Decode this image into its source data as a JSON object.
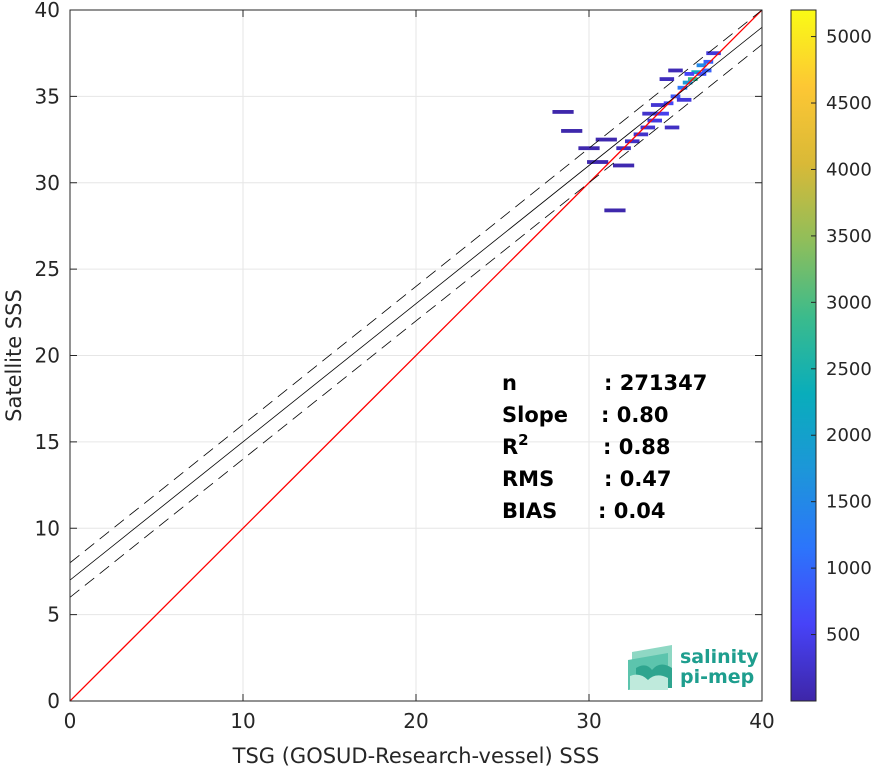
{
  "chart_data": {
    "type": "heatmap",
    "xlabel": "TSG (GOSUD-Research-vessel) SSS",
    "ylabel": "Satellite SSS",
    "xlim": [
      0,
      40
    ],
    "ylim": [
      0,
      40
    ],
    "xticks": [
      "0",
      "10",
      "20",
      "30",
      "40"
    ],
    "yticks": [
      "0",
      "5",
      "10",
      "15",
      "20",
      "25",
      "30",
      "35",
      "40"
    ],
    "grid": true,
    "reference_line": {
      "type": "1:1",
      "color": "#ff0000"
    },
    "fit_line": {
      "slope": 0.8,
      "intercept": 7.0,
      "color": "#000000"
    },
    "fit_bounds": {
      "offsets": [
        1.0,
        -1.0
      ],
      "style": "dashed",
      "color": "#000000"
    },
    "colorbar": {
      "range": [
        0,
        5200
      ],
      "ticks": [
        "500",
        "1000",
        "1500",
        "2000",
        "2500",
        "3000",
        "3500",
        "4000",
        "4500",
        "5000"
      ],
      "colormap": [
        "#3e26a8",
        "#4743f8",
        "#2c75fb",
        "#1d96d9",
        "#09adbb",
        "#3bbb8c",
        "#90be5a",
        "#d9b937",
        "#fdc734",
        "#f9fb15"
      ]
    },
    "density": [
      {
        "x": 37.2,
        "y": 37.5,
        "count": 350
      },
      {
        "x": 36.9,
        "y": 37.0,
        "count": 900
      },
      {
        "x": 36.5,
        "y": 36.8,
        "count": 1500
      },
      {
        "x": 36.2,
        "y": 36.4,
        "count": 2200
      },
      {
        "x": 36.0,
        "y": 36.0,
        "count": 2800
      },
      {
        "x": 35.7,
        "y": 35.8,
        "count": 1800
      },
      {
        "x": 35.4,
        "y": 35.5,
        "count": 1200
      },
      {
        "x": 35.0,
        "y": 35.0,
        "count": 800
      },
      {
        "x": 34.6,
        "y": 34.6,
        "count": 600
      },
      {
        "x": 34.2,
        "y": 34.0,
        "count": 500
      },
      {
        "x": 33.8,
        "y": 33.6,
        "count": 400
      },
      {
        "x": 33.4,
        "y": 33.2,
        "count": 300
      },
      {
        "x": 33.0,
        "y": 32.8,
        "count": 250
      },
      {
        "x": 32.5,
        "y": 32.4,
        "count": 200
      },
      {
        "x": 32.0,
        "y": 32.0,
        "count": 150
      },
      {
        "x": 36.5,
        "y": 36.3,
        "count": 700
      },
      {
        "x": 36.8,
        "y": 36.5,
        "count": 900
      },
      {
        "x": 35.8,
        "y": 36.3,
        "count": 600
      },
      {
        "x": 34.0,
        "y": 34.5,
        "count": 300
      },
      {
        "x": 33.5,
        "y": 34.0,
        "count": 250
      },
      {
        "x": 35.5,
        "y": 34.8,
        "count": 350
      },
      {
        "x": 31.0,
        "y": 32.5,
        "count": 50
      },
      {
        "x": 30.0,
        "y": 32.0,
        "count": 40
      },
      {
        "x": 29.0,
        "y": 33.0,
        "count": 30
      },
      {
        "x": 28.5,
        "y": 34.1,
        "count": 20
      },
      {
        "x": 30.5,
        "y": 31.2,
        "count": 40
      },
      {
        "x": 32.0,
        "y": 31.0,
        "count": 60
      },
      {
        "x": 31.5,
        "y": 28.4,
        "count": 30
      },
      {
        "x": 34.5,
        "y": 36.0,
        "count": 150
      },
      {
        "x": 35.0,
        "y": 36.5,
        "count": 100
      },
      {
        "x": 34.8,
        "y": 33.2,
        "count": 200
      }
    ]
  },
  "stats": [
    {
      "label": "n",
      "value": ": 271347"
    },
    {
      "label": "Slope",
      "value": ": 0.80"
    },
    {
      "label": "R",
      "value": ": 0.88",
      "sup": "2"
    },
    {
      "label": "RMS",
      "value": ": 0.47"
    },
    {
      "label": "BIAS",
      "value": ": 0.04"
    }
  ],
  "logo": {
    "line1": "salinity",
    "line2": "pi-mep"
  }
}
